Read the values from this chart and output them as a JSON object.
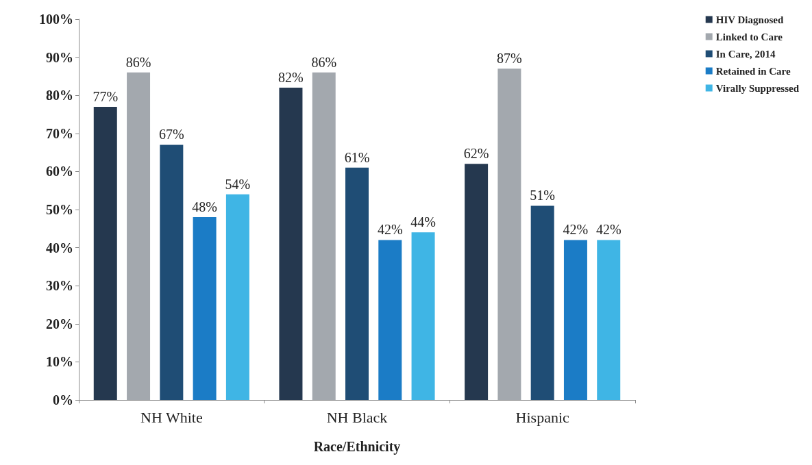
{
  "chart_data": {
    "type": "bar",
    "xlabel": "Race/Ethnicity",
    "categories": [
      "NH White",
      "NH Black",
      "Hispanic"
    ],
    "series": [
      {
        "name": "HIV Diagnosed",
        "color": "#25384f",
        "values": [
          77,
          82,
          62
        ],
        "value_labels": [
          "77%",
          "82%",
          "62%"
        ]
      },
      {
        "name": "Linked to Care",
        "color": "#a3a8ae",
        "values": [
          86,
          86,
          87
        ],
        "value_labels": [
          "86%",
          "86%",
          "87%"
        ]
      },
      {
        "name": "In Care, 2014",
        "color": "#1f4d75",
        "values": [
          67,
          61,
          51
        ],
        "value_labels": [
          "67%",
          "61%",
          "51%"
        ]
      },
      {
        "name": "Retained in Care",
        "color": "#1b7cc6",
        "values": [
          48,
          42,
          42
        ],
        "value_labels": [
          "48%",
          "42%",
          "42%"
        ]
      },
      {
        "name": "Virally Suppressed",
        "color": "#3fb5e5",
        "values": [
          54,
          44,
          42
        ],
        "value_labels": [
          "54%",
          "44%",
          "42%"
        ]
      }
    ],
    "ylim": [
      0,
      100
    ],
    "yticks": [
      {
        "value": 0,
        "label": "0%"
      },
      {
        "value": 10,
        "label": "10%"
      },
      {
        "value": 20,
        "label": "20%"
      },
      {
        "value": 30,
        "label": "30%"
      },
      {
        "value": 40,
        "label": "40%"
      },
      {
        "value": 50,
        "label": "50%"
      },
      {
        "value": 60,
        "label": "60%"
      },
      {
        "value": 70,
        "label": "70%"
      },
      {
        "value": 80,
        "label": "80%"
      },
      {
        "value": 90,
        "label": "90%"
      },
      {
        "value": 100,
        "label": "100%"
      }
    ],
    "grid": false,
    "legend": "top right"
  }
}
